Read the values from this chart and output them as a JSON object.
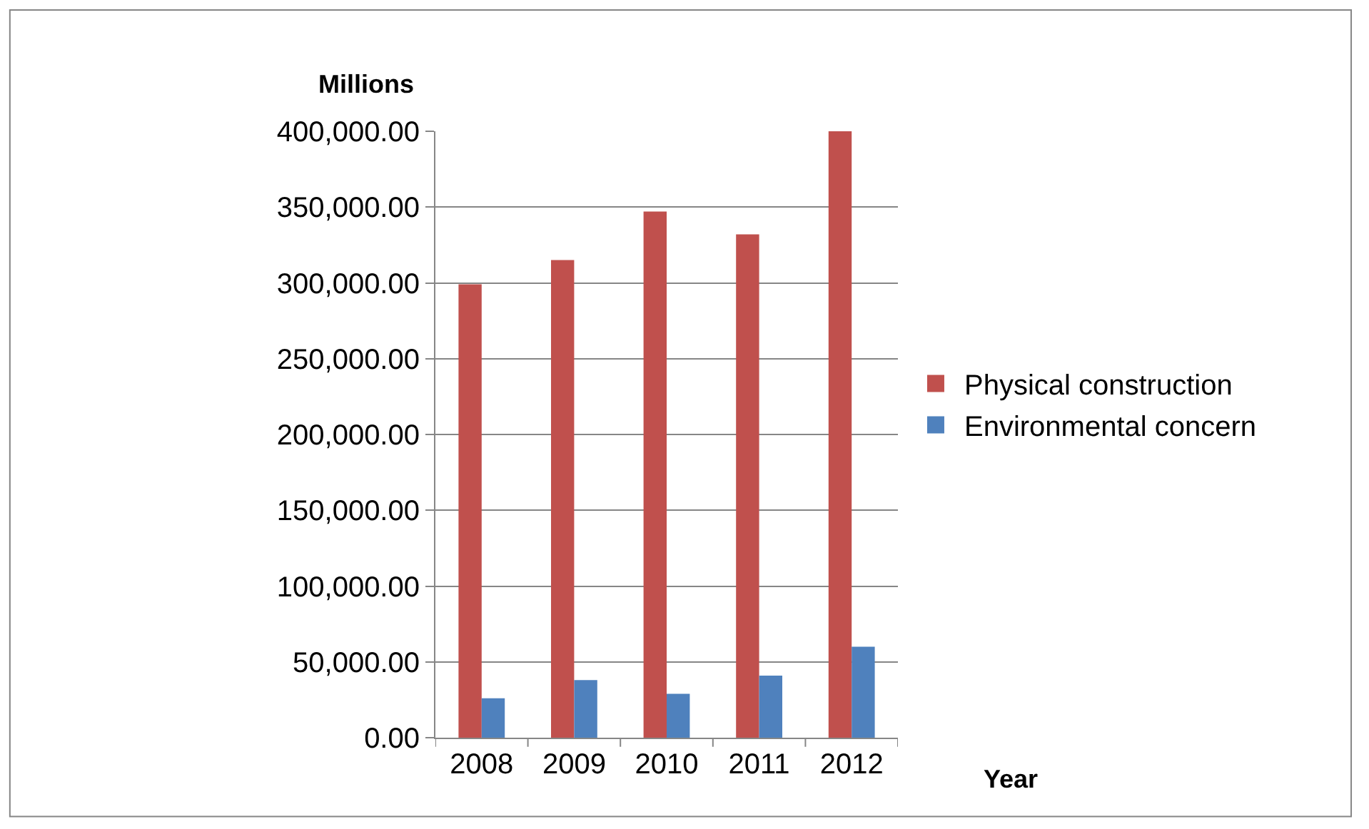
{
  "chart_data": {
    "type": "bar",
    "ylabel": "Millions",
    "xlabel": "Year",
    "categories": [
      "2008",
      "2009",
      "2010",
      "2011",
      "2012"
    ],
    "series": [
      {
        "name": "Physical construction",
        "color": "#c0504d",
        "values": [
          299000,
          315000,
          347000,
          332000,
          400000
        ]
      },
      {
        "name": "Environmental concern",
        "color": "#4f81bd",
        "values": [
          26000,
          38000,
          29000,
          41000,
          60000
        ]
      }
    ],
    "ylim": [
      0,
      400000
    ],
    "yticks": [
      {
        "value": 0,
        "label": "0.00"
      },
      {
        "value": 50000,
        "label": "50,000.00"
      },
      {
        "value": 100000,
        "label": "100,000.00"
      },
      {
        "value": 150000,
        "label": "150,000.00"
      },
      {
        "value": 200000,
        "label": "200,000.00"
      },
      {
        "value": 250000,
        "label": "250,000.00"
      },
      {
        "value": 300000,
        "label": "300,000.00"
      },
      {
        "value": 350000,
        "label": "350,000.00"
      },
      {
        "value": 400000,
        "label": "400,000.00"
      }
    ],
    "grid": "y",
    "legend": "right"
  }
}
